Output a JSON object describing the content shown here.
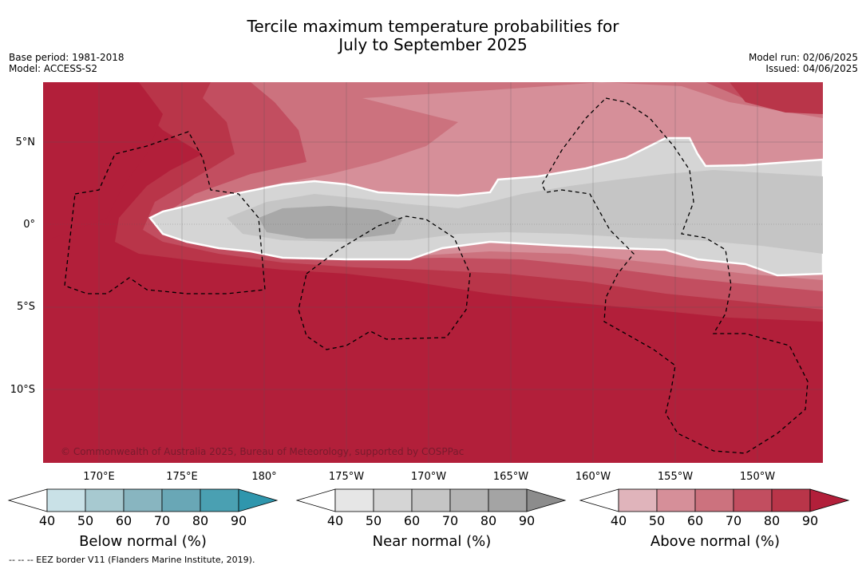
{
  "title_line1": "Tercile maximum temperature probabilities for",
  "title_line2": "July to September 2025",
  "meta_left": {
    "base_period": "Base period: 1981-2018",
    "model": "Model: ACCESS-S2"
  },
  "meta_right": {
    "model_run": "Model run: 02/06/2025",
    "issued": "Issued: 04/06/2025"
  },
  "lat_labels": [
    "5°N",
    "0°",
    "5°S",
    "10°S"
  ],
  "lon_labels": [
    "170°E",
    "175°E",
    "180°",
    "175°W",
    "170°W",
    "165°W",
    "160°W",
    "155°W",
    "150°W"
  ],
  "copyright": "© Commonwealth of Australia 2025, Bureau of Meteorology, supported by COSPPac",
  "colorbars": [
    {
      "name": "below",
      "title": "Below normal (%)",
      "ticks": [
        "40",
        "50",
        "60",
        "70",
        "80",
        "90"
      ],
      "colors": [
        "#c9e1e7",
        "#a7c9d0",
        "#88b5c0",
        "#69a7b6",
        "#4aa0b2",
        "#2f96ad"
      ]
    },
    {
      "name": "near",
      "title": "Near normal (%)",
      "ticks": [
        "40",
        "50",
        "60",
        "70",
        "80",
        "90"
      ],
      "colors": [
        "#e6e6e6",
        "#d5d5d5",
        "#c5c5c5",
        "#b4b4b4",
        "#a4a4a4",
        "#8c8c8c"
      ]
    },
    {
      "name": "above",
      "title": "Above normal (%)",
      "ticks": [
        "40",
        "50",
        "60",
        "70",
        "80",
        "90"
      ],
      "colors": [
        "#e0b4bb",
        "#d68f99",
        "#cc727e",
        "#c24e60",
        "#b93549",
        "#b21f3a"
      ]
    }
  ],
  "footnote": "-- -- -- EEZ border V11 (Flanders Marine Institute, 2019).",
  "map_colors": {
    "above_90": "#b21f3a",
    "above_80": "#b93549",
    "above_70": "#c24e60",
    "above_60": "#cc727e",
    "above_50": "#d68f99",
    "near_40": "#e6e6e6",
    "near_50": "#d5d5d5",
    "near_60": "#c5c5c5",
    "near_70": "#a8a8a8"
  }
}
